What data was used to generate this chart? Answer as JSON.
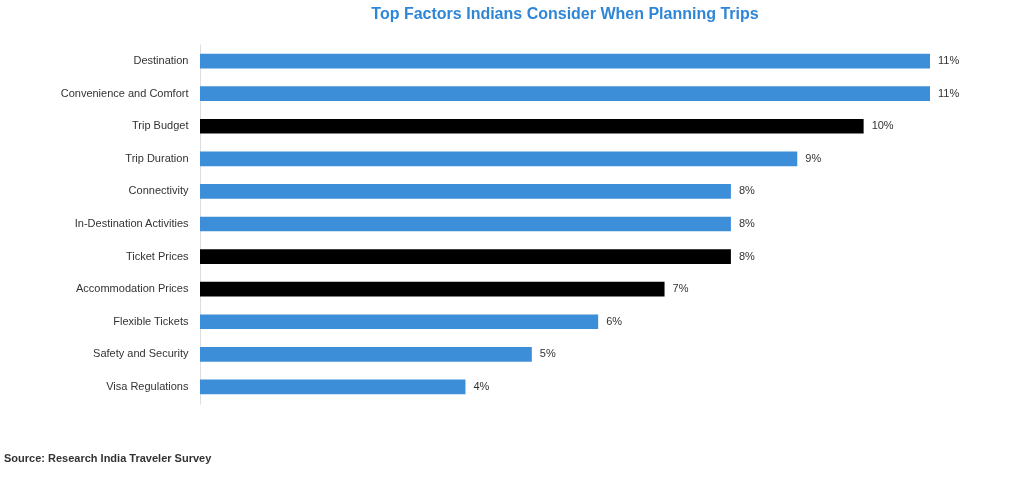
{
  "chart_data": {
    "type": "bar",
    "orientation": "horizontal",
    "title": "Top Factors Indians Consider When Planning Trips",
    "categories": [
      "Destination",
      "Convenience and Comfort",
      "Trip Budget",
      "Trip Duration",
      "Connectivity",
      "In-Destination Activities",
      "Ticket Prices",
      "Accommodation Prices",
      "Flexible Tickets",
      "Safety and Security",
      "Visa Regulations"
    ],
    "values": [
      11,
      11,
      10,
      9,
      8,
      8,
      8,
      7,
      6,
      5,
      4
    ],
    "value_labels": [
      "11%",
      "11%",
      "10%",
      "9%",
      "8%",
      "8%",
      "8%",
      "7%",
      "6%",
      "5%",
      "4%"
    ],
    "colors": [
      "#3d8ed8",
      "#3d8ed8",
      "#000000",
      "#3d8ed8",
      "#3d8ed8",
      "#3d8ed8",
      "#000000",
      "#000000",
      "#3d8ed8",
      "#3d8ed8",
      "#3d8ed8"
    ],
    "annotations": [
      "Source: Research India Traveler Survey"
    ],
    "grid": false
  }
}
